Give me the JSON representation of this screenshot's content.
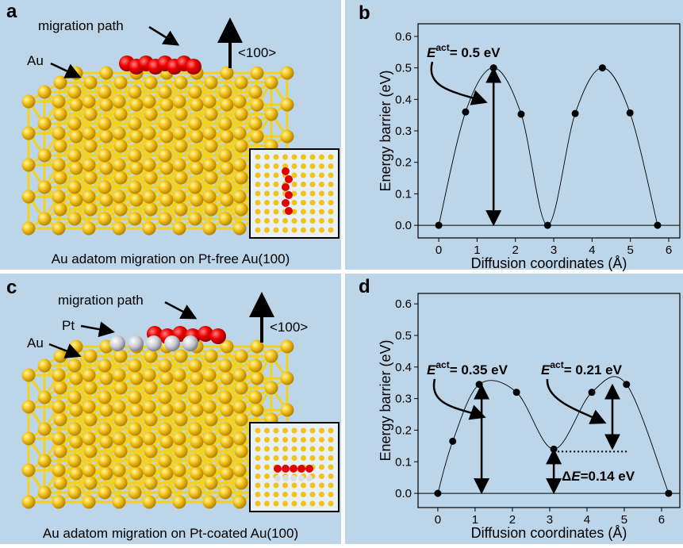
{
  "panels": [
    {
      "letter": "a",
      "path_label": "migration path",
      "atom_label": "Au",
      "direction": "<100>",
      "caption": "Au adatom migration on Pt-free Au(100)"
    },
    {
      "letter": "c",
      "path_label": "migration path",
      "atom_label": "Au",
      "coating_label": "Pt",
      "direction": "<100>",
      "caption": "Au adatom migration on Pt-coated Au(100)"
    }
  ],
  "chart_data": [
    {
      "type": "line",
      "letter": "b",
      "x_label": "Diffusion coordinates (Å)",
      "y_label": "Energy barrier (eV)",
      "x": [
        0,
        0.7,
        1.43,
        2.15,
        2.84,
        3.56,
        4.27,
        4.99,
        5.71
      ],
      "series": [
        {
          "color": "#000000",
          "values": [
            0,
            0.36,
            0.5,
            0.353,
            0,
            0.355,
            0.5,
            0.357,
            0
          ]
        }
      ],
      "xlim": [
        -0.54,
        6.29
      ],
      "ylim": [
        -0.04,
        0.64
      ],
      "xticks": [
        0,
        1,
        2,
        3,
        4,
        5,
        6
      ],
      "yticks": [
        {
          "value": 0,
          "label": "0.0"
        },
        0.1,
        0.2,
        0.3,
        0.4,
        0.5,
        0.6
      ],
      "annotations": [
        {
          "symbol": "E",
          "superscript": "act",
          "text": "= 0.5 eV"
        }
      ]
    },
    {
      "type": "line",
      "letter": "d",
      "x_label": "Diffusion coordinates (Å)",
      "y_label": "Energy barrier (eV)",
      "x": [
        0,
        0.4,
        1.11,
        2.11,
        3.11,
        4.13,
        5.06,
        6.19
      ],
      "series": [
        {
          "color": "#000000",
          "values": [
            0,
            0.165,
            0.345,
            0.32,
            0.14,
            0.32,
            0.345,
            0
          ]
        }
      ],
      "xlim": [
        -0.53,
        6.49
      ],
      "ylim": [
        -0.045,
        0.633
      ],
      "xticks": [
        0,
        1,
        2,
        3,
        4,
        5,
        6
      ],
      "yticks": [
        {
          "value": 0,
          "label": "0.0"
        },
        0.1,
        0.2,
        0.3,
        0.4,
        0.5,
        0.6
      ],
      "annotations": [
        {
          "symbol": "E",
          "superscript": "act",
          "text": "= 0.35 eV"
        },
        {
          "symbol": "E",
          "superscript": "act",
          "text": "= 0.21 eV"
        },
        {
          "prefix": "Δ",
          "symbol": "E",
          "text": "=0.14 eV"
        }
      ]
    }
  ]
}
